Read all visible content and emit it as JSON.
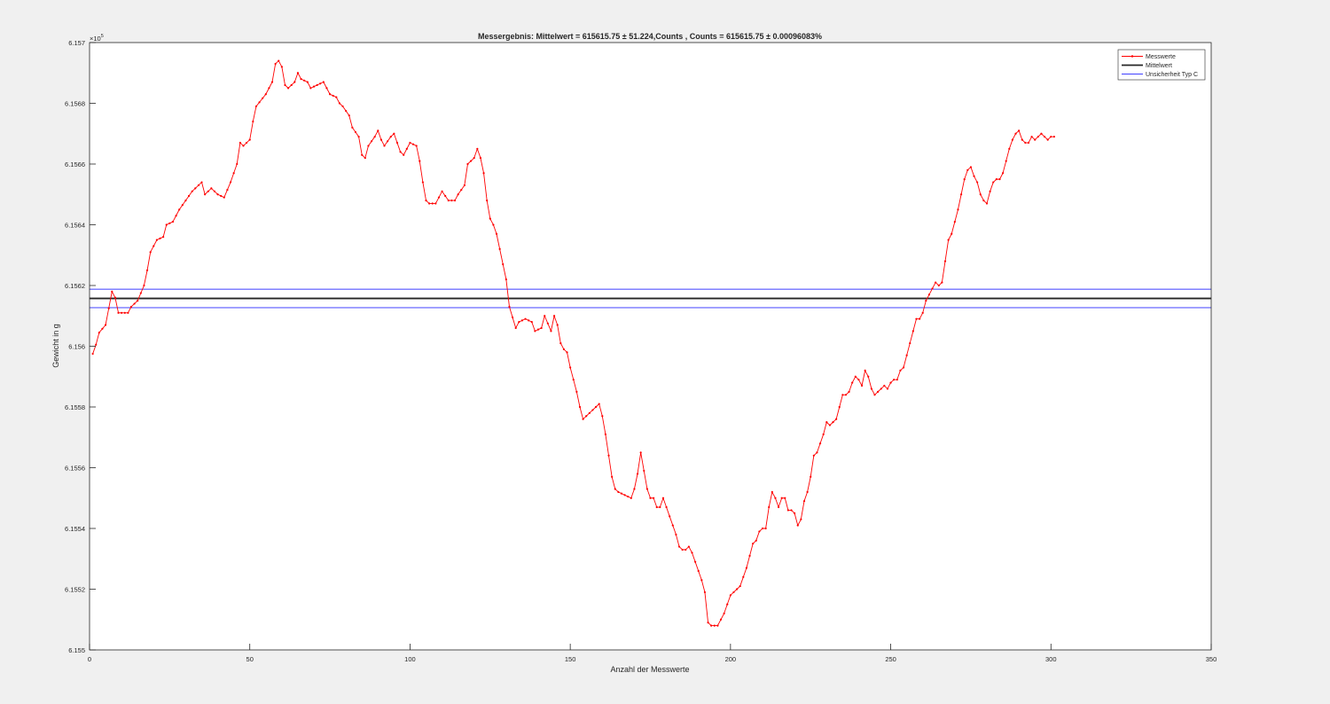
{
  "colors": {
    "figure_bg": "#f0f0f0",
    "axes_bg": "#ffffff",
    "axis": "#262626",
    "measurements": "#ff0000",
    "mean": "#262626",
    "uncertainty": "#0000ff"
  },
  "chart_data": {
    "type": "line",
    "title": "Messergebnis: Mittelwert = 615615.75 ± 51.224,Counts , Counts = 615615.75 ± 0.00096083%",
    "xlabel": "Anzahl der Messwerte",
    "ylabel": "Gewicht in g",
    "y_exponent_label": "×10",
    "y_exponent_power": "5",
    "xlim": [
      0,
      350
    ],
    "ylim": [
      615500,
      615700
    ],
    "x_ticks": [
      0,
      50,
      100,
      150,
      200,
      250,
      300,
      350
    ],
    "x_tick_labels": [
      "0",
      "50",
      "100",
      "150",
      "200",
      "250",
      "300",
      "350"
    ],
    "y_ticks": [
      615500,
      615520,
      615540,
      615560,
      615580,
      615600,
      615620,
      615640,
      615660,
      615680,
      615700
    ],
    "y_tick_labels": [
      "6.155",
      "6.1552",
      "6.1554",
      "6.1556",
      "6.1558",
      "6.156",
      "6.1562",
      "6.1564",
      "6.1566",
      "6.1568",
      "6.157"
    ],
    "grid": false,
    "legend_position": "top-right",
    "series": [
      {
        "name": "Messwerte",
        "style": "line-with-dots",
        "x_start": 1,
        "x_step": 1,
        "anchors": [
          [
            1,
            615597.5
          ],
          [
            2,
            615600.5
          ],
          [
            3,
            615604.5
          ],
          [
            5,
            615607
          ],
          [
            7,
            615618
          ],
          [
            8,
            615616
          ],
          [
            9,
            615611
          ],
          [
            11,
            615611
          ],
          [
            12,
            615611
          ],
          [
            13,
            615613
          ],
          [
            15,
            615615
          ],
          [
            17,
            615620
          ],
          [
            18,
            615625
          ],
          [
            19,
            615631
          ],
          [
            21,
            615635
          ],
          [
            23,
            615636
          ],
          [
            24,
            615640
          ],
          [
            26,
            615641
          ],
          [
            28,
            615645
          ],
          [
            30,
            615648
          ],
          [
            32,
            615651
          ],
          [
            34,
            615653
          ],
          [
            35,
            615654
          ],
          [
            36,
            615650
          ],
          [
            38,
            615652
          ],
          [
            40,
            615650
          ],
          [
            42,
            615649
          ],
          [
            44,
            615654
          ],
          [
            46,
            615660
          ],
          [
            47,
            615667
          ],
          [
            48,
            615666
          ],
          [
            50,
            615668
          ],
          [
            51,
            615674
          ],
          [
            52,
            615679
          ],
          [
            55,
            615683
          ],
          [
            57,
            615687
          ],
          [
            58,
            615693
          ],
          [
            59,
            615694
          ],
          [
            60,
            615692
          ],
          [
            61,
            615686
          ],
          [
            62,
            615685
          ],
          [
            64,
            615687
          ],
          [
            65,
            615690
          ],
          [
            66,
            615688
          ],
          [
            68,
            615687
          ],
          [
            69,
            615685
          ],
          [
            71,
            615686
          ],
          [
            73,
            615687
          ],
          [
            75,
            615683
          ],
          [
            77,
            615682
          ],
          [
            78,
            615680
          ],
          [
            79,
            615679
          ],
          [
            81,
            615676
          ],
          [
            82,
            615672
          ],
          [
            84,
            615669
          ],
          [
            85,
            615663
          ],
          [
            86,
            615662
          ],
          [
            87,
            615666
          ],
          [
            89,
            615669
          ],
          [
            90,
            615671
          ],
          [
            91,
            615668
          ],
          [
            92,
            615666
          ],
          [
            94,
            615669
          ],
          [
            95,
            615670
          ],
          [
            97,
            615664
          ],
          [
            98,
            615663
          ],
          [
            100,
            615667
          ],
          [
            102,
            615666
          ],
          [
            103,
            615661
          ],
          [
            104,
            615654
          ],
          [
            105,
            615648
          ],
          [
            106,
            615647
          ],
          [
            107,
            615647
          ],
          [
            108,
            615647
          ],
          [
            110,
            615651
          ],
          [
            112,
            615648
          ],
          [
            114,
            615648
          ],
          [
            115,
            615650
          ],
          [
            117,
            615653
          ],
          [
            118,
            615660
          ],
          [
            120,
            615662
          ],
          [
            121,
            615665
          ],
          [
            122,
            615662
          ],
          [
            123,
            615657
          ],
          [
            124,
            615648
          ],
          [
            125,
            615642
          ],
          [
            126,
            615640
          ],
          [
            127,
            615637
          ],
          [
            129,
            615627
          ],
          [
            130,
            615622
          ],
          [
            131,
            615613
          ],
          [
            133,
            615606
          ],
          [
            134,
            615608
          ],
          [
            136,
            615609
          ],
          [
            138,
            615608
          ],
          [
            139,
            615605
          ],
          [
            141,
            615606
          ],
          [
            142,
            615610
          ],
          [
            144,
            615605
          ],
          [
            145,
            615610
          ],
          [
            146,
            615607
          ],
          [
            147,
            615601
          ],
          [
            148,
            615599
          ],
          [
            149,
            615598
          ],
          [
            150,
            615593
          ],
          [
            151,
            615589
          ],
          [
            152,
            615585
          ],
          [
            153,
            615580
          ],
          [
            154,
            615576
          ],
          [
            156,
            615578
          ],
          [
            157,
            615579
          ],
          [
            159,
            615581
          ],
          [
            160,
            615577
          ],
          [
            161,
            615571
          ],
          [
            162,
            615564
          ],
          [
            163,
            615557
          ],
          [
            164,
            615553
          ],
          [
            165,
            615552
          ],
          [
            167,
            615551
          ],
          [
            169,
            615550
          ],
          [
            170,
            615553
          ],
          [
            171,
            615558
          ],
          [
            172,
            615565
          ],
          [
            173,
            615559
          ],
          [
            174,
            615553
          ],
          [
            175,
            615550
          ],
          [
            176,
            615550
          ],
          [
            177,
            615547
          ],
          [
            178,
            615547
          ],
          [
            179,
            615550
          ],
          [
            180,
            615547
          ],
          [
            181,
            615544
          ],
          [
            182,
            615541
          ],
          [
            183,
            615538
          ],
          [
            184,
            615534
          ],
          [
            185,
            615533
          ],
          [
            186,
            615533
          ],
          [
            187,
            615534
          ],
          [
            188,
            615532
          ],
          [
            189,
            615529
          ],
          [
            190,
            615526
          ],
          [
            191,
            615523
          ],
          [
            192,
            615519
          ],
          [
            193,
            615509
          ],
          [
            194,
            615508
          ],
          [
            195,
            615508
          ],
          [
            196,
            615508
          ],
          [
            197,
            615510
          ],
          [
            198,
            615512
          ],
          [
            199,
            615515
          ],
          [
            200,
            615518
          ],
          [
            201,
            615519
          ],
          [
            202,
            615520
          ],
          [
            203,
            615521
          ],
          [
            204,
            615524
          ],
          [
            205,
            615527
          ],
          [
            206,
            615531
          ],
          [
            207,
            615535
          ],
          [
            208,
            615536
          ],
          [
            209,
            615539
          ],
          [
            210,
            615540
          ],
          [
            211,
            615540
          ],
          [
            212,
            615547
          ],
          [
            213,
            615552
          ],
          [
            214,
            615550
          ],
          [
            215,
            615547
          ],
          [
            216,
            615550
          ],
          [
            217,
            615550
          ],
          [
            218,
            615546
          ],
          [
            219,
            615546
          ],
          [
            220,
            615545
          ],
          [
            221,
            615541
          ],
          [
            222,
            615543
          ],
          [
            223,
            615549
          ],
          [
            224,
            615552
          ],
          [
            225,
            615557
          ],
          [
            226,
            615564
          ],
          [
            227,
            615565
          ],
          [
            228,
            615568
          ],
          [
            229,
            615571
          ],
          [
            230,
            615575
          ],
          [
            231,
            615574
          ],
          [
            232,
            615575
          ],
          [
            233,
            615576
          ],
          [
            234,
            615580
          ],
          [
            235,
            615584
          ],
          [
            236,
            615584
          ],
          [
            237,
            615585
          ],
          [
            238,
            615588
          ],
          [
            239,
            615590
          ],
          [
            240,
            615589
          ],
          [
            241,
            615587
          ],
          [
            242,
            615592
          ],
          [
            243,
            615590
          ],
          [
            244,
            615586
          ],
          [
            245,
            615584
          ],
          [
            246,
            615585
          ],
          [
            247,
            615586
          ],
          [
            248,
            615587
          ],
          [
            249,
            615586
          ],
          [
            250,
            615588
          ],
          [
            251,
            615589
          ],
          [
            252,
            615589
          ],
          [
            253,
            615592
          ],
          [
            254,
            615593
          ],
          [
            255,
            615597
          ],
          [
            256,
            615601
          ],
          [
            257,
            615605
          ],
          [
            258,
            615609
          ],
          [
            259,
            615609
          ],
          [
            260,
            615611
          ],
          [
            261,
            615615
          ],
          [
            262,
            615617
          ],
          [
            263,
            615619
          ],
          [
            264,
            615621
          ],
          [
            265,
            615620
          ],
          [
            266,
            615621
          ],
          [
            267,
            615628
          ],
          [
            268,
            615635
          ],
          [
            269,
            615637
          ],
          [
            270,
            615641
          ],
          [
            271,
            615645
          ],
          [
            272,
            615650
          ],
          [
            273,
            615655
          ],
          [
            274,
            615658
          ],
          [
            275,
            615659
          ],
          [
            276,
            615656
          ],
          [
            277,
            615654
          ],
          [
            278,
            615650
          ],
          [
            279,
            615648
          ],
          [
            280,
            615647
          ],
          [
            281,
            615651
          ],
          [
            282,
            615654
          ],
          [
            283,
            615655
          ],
          [
            284,
            615655
          ],
          [
            285,
            615657
          ],
          [
            286,
            615661
          ],
          [
            287,
            615665
          ],
          [
            288,
            615668
          ],
          [
            289,
            615670
          ],
          [
            290,
            615671
          ],
          [
            291,
            615668
          ],
          [
            292,
            615667
          ],
          [
            293,
            615667
          ],
          [
            294,
            615669
          ],
          [
            295,
            615668
          ],
          [
            296,
            615669
          ],
          [
            297,
            615670
          ],
          [
            298,
            615669
          ],
          [
            299,
            615668
          ],
          [
            300,
            615669
          ],
          [
            301,
            615669
          ]
        ]
      },
      {
        "name": "Mittelwert",
        "style": "line",
        "y": 615615.75
      },
      {
        "name": "Unsicherheit Typ C",
        "style": "line",
        "y_upper": 615618.8,
        "y_lower": 615612.7
      }
    ]
  }
}
